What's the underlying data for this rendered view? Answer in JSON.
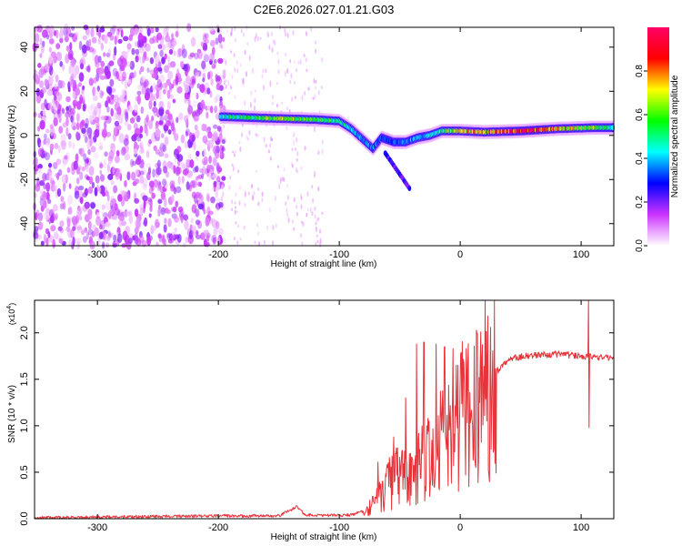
{
  "title": "C2E6.2026.027.01.21.G03",
  "chart_data": [
    {
      "type": "heatmap",
      "title": "C2E6.2026.027.01.21.G03",
      "xlabel": "Height of straight line (km)",
      "ylabel": "Frequency (Hz)",
      "xlim": [
        -352,
        127
      ],
      "ylim": [
        -50,
        49
      ],
      "x_ticks": [
        -300,
        -200,
        -100,
        0,
        100
      ],
      "x_tick_labels": [
        "-300",
        "-200",
        "-100",
        "0",
        "100"
      ],
      "y_ticks": [
        -40,
        -20,
        0,
        20,
        40
      ],
      "y_tick_labels": [
        "-40",
        "-20",
        "0",
        "20",
        "40"
      ],
      "colorbar": {
        "label": "Normalized spectral amplitude",
        "range": [
          0,
          1
        ],
        "ticks": [
          0,
          0.2,
          0.4,
          0.6,
          0.8
        ],
        "tick_labels": [
          "0.0",
          "0.2",
          "0.4",
          "0.6",
          "0.8"
        ],
        "colors": [
          "#ffffff",
          "#cc33ff",
          "#0000ff",
          "#00ffff",
          "#00ff00",
          "#ffff00",
          "#ff0000",
          "#ff0066"
        ]
      },
      "noise_region": {
        "x_range": [
          -352,
          -200
        ],
        "freq_range": [
          -50,
          49
        ],
        "amplitude": 0.2
      },
      "ridge": [
        {
          "x": -198,
          "f": 8.5
        },
        {
          "x": -180,
          "f": 8.2
        },
        {
          "x": -160,
          "f": 7.8
        },
        {
          "x": -140,
          "f": 7.5
        },
        {
          "x": -120,
          "f": 7.2
        },
        {
          "x": -100,
          "f": 6.5
        },
        {
          "x": -90,
          "f": 3
        },
        {
          "x": -80,
          "f": -2
        },
        {
          "x": -72,
          "f": -6
        },
        {
          "x": -65,
          "f": -1
        },
        {
          "x": -55,
          "f": -3
        },
        {
          "x": -45,
          "f": -3
        },
        {
          "x": -35,
          "f": -1
        },
        {
          "x": -25,
          "f": 0
        },
        {
          "x": -15,
          "f": 2
        },
        {
          "x": 0,
          "f": 2
        },
        {
          "x": 20,
          "f": 1.5
        },
        {
          "x": 50,
          "f": 2
        },
        {
          "x": 80,
          "f": 3
        },
        {
          "x": 110,
          "f": 3.5
        },
        {
          "x": 127,
          "f": 3.5
        }
      ],
      "ridge_amplitude": [
        {
          "x": -198,
          "a": 0.5
        },
        {
          "x": -150,
          "a": 0.7
        },
        {
          "x": -110,
          "a": 0.6
        },
        {
          "x": -85,
          "a": 0.45
        },
        {
          "x": -60,
          "a": 0.35
        },
        {
          "x": -30,
          "a": 0.45
        },
        {
          "x": 0,
          "a": 0.75
        },
        {
          "x": 50,
          "a": 1.0
        },
        {
          "x": 90,
          "a": 0.8
        },
        {
          "x": 127,
          "a": 0.55
        }
      ],
      "branch": {
        "x_range": [
          -62,
          -42
        ],
        "f_range": [
          -8,
          -24
        ],
        "amplitude": 0.3
      }
    },
    {
      "type": "line",
      "title": "",
      "xlabel": "Height of straight line (km)",
      "ylabel": "SNR (10 * v/v)",
      "ylabel_scale": "(x10",
      "ylabel_scale_exponent": "4",
      "ylabel_scale_close": ")",
      "xlim": [
        -352,
        127
      ],
      "ylim": [
        0,
        23500
      ],
      "x_ticks": [
        -300,
        -200,
        -100,
        0,
        100
      ],
      "x_tick_labels": [
        "-300",
        "-200",
        "-100",
        "0",
        "100"
      ],
      "y_ticks": [
        0,
        5000,
        10000,
        15000,
        20000
      ],
      "y_tick_labels": [
        "0.0",
        "0.5",
        "1.0",
        "1.5",
        "2.0"
      ],
      "color": "#e8333a",
      "envelope": [
        {
          "x": -352,
          "y": 100
        },
        {
          "x": -200,
          "y": 300
        },
        {
          "x": -150,
          "y": 300
        },
        {
          "x": -135,
          "y": 1300
        },
        {
          "x": -128,
          "y": 400
        },
        {
          "x": -110,
          "y": 350
        },
        {
          "x": -90,
          "y": 400
        },
        {
          "x": -78,
          "y": 900
        },
        {
          "x": -68,
          "y": 2500
        },
        {
          "x": -55,
          "y": 4500
        },
        {
          "x": -40,
          "y": 5500
        },
        {
          "x": -28,
          "y": 7000
        },
        {
          "x": -18,
          "y": 8500
        },
        {
          "x": -8,
          "y": 10500
        },
        {
          "x": 0,
          "y": 12000
        },
        {
          "x": 10,
          "y": 13500
        },
        {
          "x": 20,
          "y": 14500
        },
        {
          "x": 30,
          "y": 15800
        },
        {
          "x": 40,
          "y": 17200
        },
        {
          "x": 60,
          "y": 17600
        },
        {
          "x": 80,
          "y": 17700
        },
        {
          "x": 100,
          "y": 17500
        },
        {
          "x": 127,
          "y": 17300
        }
      ],
      "spikes": [
        {
          "x": -68,
          "y": 6100
        },
        {
          "x": -55,
          "y": 8800
        },
        {
          "x": -45,
          "y": 13000
        },
        {
          "x": -36,
          "y": 18800
        },
        {
          "x": -30,
          "y": 19000
        },
        {
          "x": -20,
          "y": 18800
        },
        {
          "x": -13,
          "y": 18500
        },
        {
          "x": -6,
          "y": 18300
        },
        {
          "x": 14,
          "y": 19900
        },
        {
          "x": 106,
          "y": 23500
        },
        {
          "x": 106.5,
          "y": 9800
        }
      ]
    }
  ]
}
